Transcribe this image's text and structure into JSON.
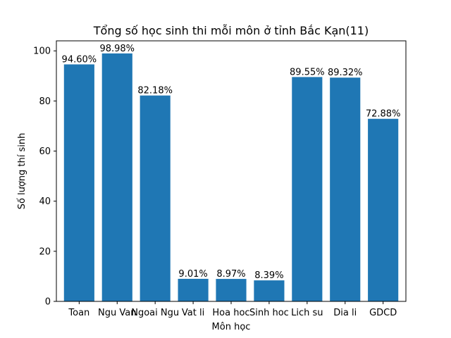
{
  "chart_data": {
    "type": "bar",
    "title": "Tổng số học sinh thi mỗi môn ở tỉnh Bắc Kạn(11)",
    "xlabel": "Môn học",
    "ylabel": "Số lượng thí sinh",
    "categories": [
      "Toan",
      "Ngu Van",
      "Ngoai Ngu",
      "Vat li",
      "Hoa hoc",
      "Sinh hoc",
      "Lich su",
      "Dia li",
      "GDCD"
    ],
    "values": [
      94.6,
      98.98,
      82.18,
      9.01,
      8.97,
      8.39,
      89.55,
      89.32,
      72.88
    ],
    "data_labels": [
      "94.60%",
      "98.98%",
      "82.18%",
      "9.01%",
      "8.97%",
      "8.39%",
      "89.55%",
      "89.32%",
      "72.88%"
    ],
    "ylim": [
      0,
      104
    ],
    "yticks": [
      0,
      20,
      40,
      60,
      80,
      100
    ],
    "grid": false,
    "bar_color": "#1f77b4"
  }
}
